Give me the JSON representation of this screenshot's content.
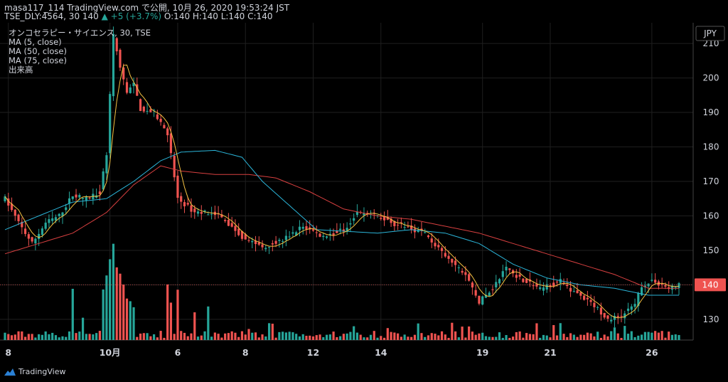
{
  "header": {
    "line1": "masa117_114 TradingView.com で公開, 10月 26, 2020 19:53:24 JST",
    "line2_prefix": "TSE_DLY:4564, 30 140",
    "change": "▲ +5 (+3.7%)",
    "ohlc": "O:140 H:140 L:140 C:140"
  },
  "legend": {
    "title": "オンコセラピー・サイエンス, 30, TSE",
    "ma5": "MA (5, close)",
    "ma50": "MA (50, close)",
    "ma75": "MA (75, close)",
    "volume": "出来高"
  },
  "currency": "JPY",
  "last_price_label": "140",
  "brand": "TradingView",
  "colors": {
    "up": "#26a69a",
    "down": "#ef5350",
    "ma5": "#f5c242",
    "ma50": "#2bb5d9",
    "ma75": "#d84040",
    "grid": "#1f1f1f",
    "text": "#d1d4dc",
    "bg": "#000000"
  },
  "chart_data": {
    "type": "candlestick",
    "title": "オンコセラピー・サイエンス, 30, TSE",
    "ylabel": "JPY",
    "ylim": [
      124,
      216
    ],
    "y_ticks": [
      130,
      140,
      150,
      160,
      170,
      180,
      190,
      200,
      210
    ],
    "x_ticks": [
      "8",
      "10月",
      "6",
      "8",
      "12",
      "14",
      "19",
      "21",
      "26"
    ],
    "x_tick_bar_index": [
      1,
      31,
      51,
      71,
      91,
      111,
      141,
      161,
      191
    ],
    "bar_count": 200,
    "ohlc_anchors": [
      [
        0,
        165
      ],
      [
        4,
        158
      ],
      [
        8,
        152
      ],
      [
        12,
        158
      ],
      [
        16,
        160
      ],
      [
        20,
        166
      ],
      [
        24,
        165
      ],
      [
        28,
        167
      ],
      [
        30,
        178
      ],
      [
        32,
        212
      ],
      [
        34,
        203
      ],
      [
        36,
        196
      ],
      [
        38,
        198
      ],
      [
        40,
        191
      ],
      [
        44,
        190
      ],
      [
        48,
        184
      ],
      [
        51,
        165
      ],
      [
        56,
        161
      ],
      [
        62,
        161
      ],
      [
        70,
        154
      ],
      [
        76,
        151
      ],
      [
        82,
        153
      ],
      [
        88,
        157
      ],
      [
        94,
        154
      ],
      [
        100,
        156
      ],
      [
        104,
        161
      ],
      [
        110,
        160
      ],
      [
        114,
        158
      ],
      [
        118,
        157
      ],
      [
        124,
        155
      ],
      [
        130,
        148
      ],
      [
        136,
        143
      ],
      [
        140,
        135
      ],
      [
        144,
        139
      ],
      [
        148,
        145
      ],
      [
        152,
        142
      ],
      [
        158,
        139
      ],
      [
        164,
        141
      ],
      [
        168,
        138
      ],
      [
        174,
        134
      ],
      [
        178,
        130
      ],
      [
        182,
        131
      ],
      [
        186,
        134
      ],
      [
        188,
        140
      ],
      [
        192,
        141
      ],
      [
        196,
        139
      ],
      [
        199,
        140
      ]
    ],
    "series": [
      {
        "name": "MA (5, close)",
        "color": "#f5c242"
      },
      {
        "name": "MA (50, close)",
        "color": "#2bb5d9"
      },
      {
        "name": "MA (75, close)",
        "color": "#d84040"
      },
      {
        "name": "出来高"
      }
    ],
    "ma50_anchors": [
      [
        0,
        156
      ],
      [
        20,
        164
      ],
      [
        30,
        165
      ],
      [
        38,
        170
      ],
      [
        46,
        176
      ],
      [
        52,
        178.5
      ],
      [
        62,
        179
      ],
      [
        70,
        177
      ],
      [
        76,
        170
      ],
      [
        84,
        163
      ],
      [
        92,
        156
      ],
      [
        110,
        155
      ],
      [
        120,
        156
      ],
      [
        130,
        155
      ],
      [
        140,
        152
      ],
      [
        150,
        146
      ],
      [
        160,
        142
      ],
      [
        170,
        140
      ],
      [
        180,
        139
      ],
      [
        190,
        137
      ],
      [
        199,
        137
      ]
    ],
    "ma75_anchors": [
      [
        0,
        149
      ],
      [
        20,
        155
      ],
      [
        30,
        161
      ],
      [
        38,
        169
      ],
      [
        46,
        174.5
      ],
      [
        52,
        173
      ],
      [
        62,
        172
      ],
      [
        72,
        172
      ],
      [
        80,
        171
      ],
      [
        90,
        167
      ],
      [
        100,
        162
      ],
      [
        110,
        160
      ],
      [
        120,
        159
      ],
      [
        130,
        157
      ],
      [
        140,
        155
      ],
      [
        150,
        152
      ],
      [
        160,
        149
      ],
      [
        170,
        146
      ],
      [
        180,
        143
      ],
      [
        190,
        139
      ],
      [
        199,
        139
      ]
    ],
    "last_price": 140
  }
}
